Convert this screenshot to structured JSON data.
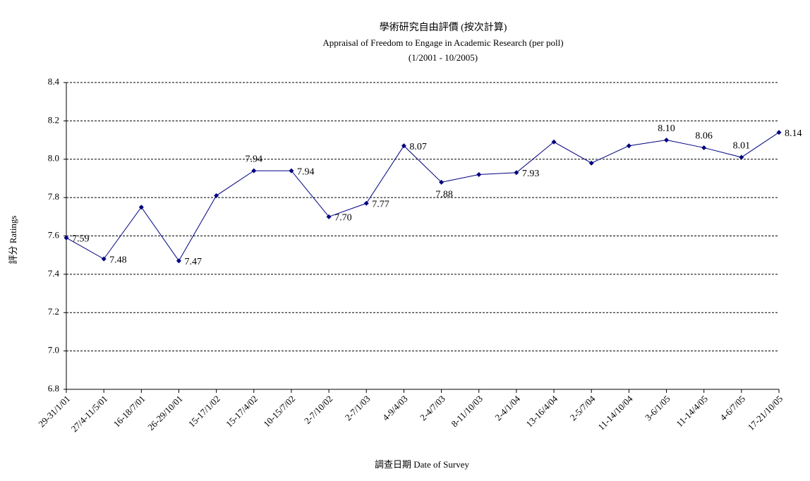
{
  "chart_data": {
    "type": "line",
    "title": "學術研究自由評價 (按次計算)",
    "subtitle": "Appraisal of Freedom to Engage in Academic Research (per poll)",
    "period": "(1/2001 - 10/2005)",
    "y_label": "評分 Ratings",
    "x_label": "調查日期 Date of Survey",
    "categories": [
      "29-31/1/01",
      "27/4-11/5/01",
      "16-18/7/01",
      "26-29/10/01",
      "15-17/1/02",
      "15-17/4/02",
      "10-15/7/02",
      "2-7/10/02",
      "2-7/1/03",
      "4-9/4/03",
      "2-4/7/03",
      "8-11/10/03",
      "2-4/1/04",
      "13-16/4/04",
      "2-5/7/04",
      "11-14/10/04",
      "3-6/1/05",
      "11-14/4/05",
      "4-6/7/05",
      "17-21/10/05"
    ],
    "series": [
      {
        "name": "Ratings",
        "color": "#000080",
        "values": [
          7.59,
          7.48,
          7.75,
          7.47,
          7.81,
          7.94,
          7.94,
          7.7,
          7.77,
          8.07,
          7.88,
          7.92,
          7.93,
          8.09,
          7.98,
          8.07,
          8.1,
          8.06,
          8.01,
          8.14
        ],
        "value_labels": [
          "7.59",
          "7.48",
          null,
          "7.47",
          null,
          "7.94",
          "7.94",
          "7.70",
          "7.77",
          "8.07",
          "7.88",
          null,
          "7.93",
          null,
          null,
          null,
          "8.10",
          "8.06",
          "8.01",
          "8.14"
        ]
      }
    ],
    "ylim": [
      6.8,
      8.4
    ],
    "yticks": [
      6.8,
      {
        "value": 7.0,
        "label": "7.0"
      },
      7.2,
      7.4,
      7.6,
      7.8,
      {
        "value": 8.0,
        "label": "8.0"
      },
      8.2,
      8.4
    ],
    "grid": true
  }
}
